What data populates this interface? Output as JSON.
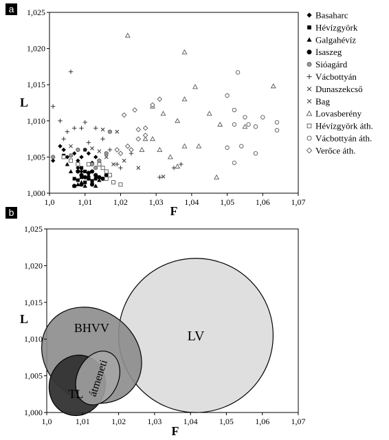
{
  "chart_data": [
    {
      "type": "scatter",
      "panel_label": "a",
      "xlabel": "F",
      "ylabel": "L",
      "xlim": [
        1.0,
        1.07
      ],
      "ylim": [
        1.0,
        1.025
      ],
      "x_ticks": [
        "1,0",
        "1,01",
        "1,02",
        "1,03",
        "1,04",
        "1,05",
        "1,06",
        "1,07"
      ],
      "y_ticks": [
        "1,000",
        "1,005",
        "1,010",
        "1,015",
        "1,020",
        "1,025"
      ],
      "legend_position": "right",
      "series": [
        {
          "name": "Basaharc",
          "marker": "diamond",
          "fill": "#000000",
          "points": [
            [
              1.001,
              1.0045
            ],
            [
              1.003,
              1.0065
            ],
            [
              1.004,
              1.006
            ],
            [
              1.005,
              1.005
            ],
            [
              1.007,
              1.0055
            ],
            [
              1.008,
              1.0045
            ],
            [
              1.009,
              1.005
            ],
            [
              1.01,
              1.006
            ],
            [
              1.011,
              1.0055
            ],
            [
              1.013,
              1.005
            ],
            [
              1.008,
              1.0035
            ],
            [
              1.012,
              1.0042
            ],
            [
              1.014,
              1.004
            ],
            [
              1.009,
              1.003
            ],
            [
              1.011,
              1.002
            ]
          ]
        },
        {
          "name": "Hévízgyörk",
          "marker": "square",
          "fill": "#000000",
          "points": [
            [
              1.007,
              1.002
            ],
            [
              1.008,
              1.0018
            ],
            [
              1.009,
              1.0022
            ],
            [
              1.01,
              1.0015
            ],
            [
              1.011,
              1.002
            ],
            [
              1.012,
              1.0017
            ],
            [
              1.009,
              1.0035
            ],
            [
              1.006,
              1.0045
            ],
            [
              1.004,
              1.0052
            ],
            [
              1.013,
              1.002
            ],
            [
              1.01,
              1.003
            ]
          ]
        },
        {
          "name": "Galgahévíz",
          "marker": "triangle",
          "fill": "#000000",
          "points": [
            [
              1.005,
              1.004
            ],
            [
              1.007,
              1.001
            ],
            [
              1.008,
              1.0012
            ],
            [
              1.01,
              1.001
            ],
            [
              1.012,
              1.0015
            ],
            [
              1.013,
              1.001
            ],
            [
              1.011,
              1.0025
            ],
            [
              1.009,
              1.0015
            ],
            [
              1.014,
              1.0018
            ],
            [
              1.006,
              1.003
            ]
          ]
        },
        {
          "name": "Isaszeg",
          "marker": "circle",
          "fill": "#000000",
          "points": [
            [
              1.007,
              1.001
            ],
            [
              1.008,
              1.003
            ],
            [
              1.009,
              1.0025
            ],
            [
              1.01,
              1.0022
            ],
            [
              1.011,
              1.0028
            ],
            [
              1.012,
              1.003
            ],
            [
              1.013,
              1.0025
            ],
            [
              1.014,
              1.0022
            ],
            [
              1.015,
              1.002
            ],
            [
              1.009,
              1.0012
            ],
            [
              1.012,
              1.0012
            ],
            [
              1.016,
              1.0025
            ]
          ]
        },
        {
          "name": "Sióagárd",
          "marker": "circle",
          "fill": "#999999",
          "points": [
            [
              1.001,
              1.005
            ],
            [
              1.006,
              1.0052
            ],
            [
              1.008,
              1.006
            ],
            [
              1.012,
              1.004
            ],
            [
              1.014,
              1.0045
            ],
            [
              1.017,
              1.0085
            ],
            [
              1.016,
              1.0055
            ],
            [
              1.013,
              1.0035
            ]
          ]
        },
        {
          "name": "Vácbottyán",
          "marker": "plus",
          "fill": "none",
          "points": [
            [
              1.001,
              1.012
            ],
            [
              1.003,
              1.01
            ],
            [
              1.004,
              1.0075
            ],
            [
              1.005,
              1.0085
            ],
            [
              1.006,
              1.0168
            ],
            [
              1.007,
              1.009
            ],
            [
              1.009,
              1.009
            ],
            [
              1.01,
              1.0098
            ],
            [
              1.011,
              1.007
            ],
            [
              1.013,
              1.009
            ],
            [
              1.015,
              1.0075
            ],
            [
              1.017,
              1.006
            ],
            [
              1.019,
              1.004
            ],
            [
              1.023,
              1.0055
            ],
            [
              1.031,
              1.0022
            ],
            [
              1.035,
              1.0035
            ],
            [
              1.037,
              1.004
            ],
            [
              1.02,
              1.0035
            ]
          ]
        },
        {
          "name": "Dunaszekcső",
          "marker": "x",
          "fill": "none",
          "points": [
            [
              1.015,
              1.0088
            ],
            [
              1.019,
              1.0085
            ],
            [
              1.016,
              1.005
            ],
            [
              1.021,
              1.0045
            ],
            [
              1.025,
              1.0035
            ],
            [
              1.032,
              1.0023
            ],
            [
              1.018,
              1.004
            ]
          ]
        },
        {
          "name": "Bag",
          "marker": "x",
          "fill": "none",
          "points": [
            [
              1.006,
              1.0065
            ],
            [
              1.01,
              1.006
            ],
            [
              1.012,
              1.0062
            ],
            [
              1.014,
              1.0058
            ]
          ]
        },
        {
          "name": "Lovasberény",
          "marker": "triangle-open",
          "fill": "none",
          "points": [
            [
              1.022,
              1.0218
            ],
            [
              1.038,
              1.0195
            ],
            [
              1.063,
              1.0148
            ],
            [
              1.041,
              1.0147
            ],
            [
              1.038,
              1.013
            ],
            [
              1.029,
              1.012
            ],
            [
              1.036,
              1.01
            ],
            [
              1.045,
              1.011
            ],
            [
              1.032,
              1.011
            ],
            [
              1.048,
              1.0095
            ],
            [
              1.055,
              1.0092
            ],
            [
              1.038,
              1.0065
            ],
            [
              1.031,
              1.006
            ],
            [
              1.029,
              1.0075
            ],
            [
              1.026,
              1.006
            ],
            [
              1.034,
              1.005
            ],
            [
              1.042,
              1.0065
            ],
            [
              1.036,
              1.0037
            ],
            [
              1.047,
              1.0022
            ],
            [
              1.027,
              1.0075
            ]
          ]
        },
        {
          "name": "Hévízgyörk áth.",
          "marker": "square-open",
          "fill": "none",
          "points": [
            [
              1.004,
              1.005
            ],
            [
              1.006,
              1.0045
            ],
            [
              1.008,
              1.004
            ],
            [
              1.011,
              1.004
            ],
            [
              1.014,
              1.004
            ],
            [
              1.016,
              1.003
            ],
            [
              1.017,
              1.0025
            ],
            [
              1.018,
              1.0015
            ],
            [
              1.02,
              1.0012
            ],
            [
              1.015,
              1.0035
            ],
            [
              1.016,
              1.002
            ]
          ]
        },
        {
          "name": "Vácbottyán áth.",
          "marker": "circle-open",
          "fill": "none",
          "points": [
            [
              1.053,
              1.0167
            ],
            [
              1.05,
              1.0135
            ],
            [
              1.052,
              1.0115
            ],
            [
              1.055,
              1.0105
            ],
            [
              1.06,
              1.0105
            ],
            [
              1.064,
              1.0098
            ],
            [
              1.056,
              1.0095
            ],
            [
              1.052,
              1.0095
            ],
            [
              1.058,
              1.0092
            ],
            [
              1.064,
              1.0087
            ],
            [
              1.05,
              1.0063
            ],
            [
              1.054,
              1.0065
            ],
            [
              1.058,
              1.0055
            ],
            [
              1.052,
              1.0042
            ]
          ]
        },
        {
          "name": "Verőce áth.",
          "marker": "diamond-open",
          "fill": "none",
          "points": [
            [
              1.021,
              1.0108
            ],
            [
              1.024,
              1.0115
            ],
            [
              1.029,
              1.0122
            ],
            [
              1.031,
              1.013
            ],
            [
              1.025,
              1.0088
            ],
            [
              1.027,
              1.009
            ],
            [
              1.022,
              1.0065
            ],
            [
              1.02,
              1.0055
            ],
            [
              1.025,
              1.0075
            ],
            [
              1.023,
              1.006
            ],
            [
              1.019,
              1.006
            ],
            [
              1.027,
              1.008
            ]
          ]
        }
      ]
    },
    {
      "type": "area",
      "panel_label": "b",
      "xlabel": "F",
      "ylabel": "L",
      "xlim": [
        1.0,
        1.07
      ],
      "ylim": [
        1.0,
        1.025
      ],
      "x_ticks": [
        "1,0",
        "1,01",
        "1,02",
        "1,03",
        "1,04",
        "1,05",
        "1,06",
        "1,07"
      ],
      "y_ticks": [
        "1,000",
        "1,005",
        "1,010",
        "1,015",
        "1,020",
        "1,025"
      ],
      "regions": [
        {
          "name": "LV",
          "cx": 1.0415,
          "cy": 1.0105,
          "rx": 0.0215,
          "ry": 0.0105,
          "rotate": 0,
          "fill": "#d9d9d9",
          "opacity": 0.85
        },
        {
          "name": "BHVV",
          "cx": 1.0125,
          "cy": 1.0078,
          "rx": 0.0125,
          "ry": 0.0072,
          "rotate": -52,
          "fill": "#8c8c8c",
          "opacity": 0.9
        },
        {
          "name": "TL",
          "cx": 1.0085,
          "cy": 1.0037,
          "rx": 0.0085,
          "ry": 0.0038,
          "rotate": -70,
          "fill": "#333333",
          "opacity": 0.95
        },
        {
          "name": "átmeneti",
          "cx": 1.0142,
          "cy": 1.0047,
          "rx": 0.0078,
          "ry": 0.0028,
          "rotate": -65,
          "fill": "#a6a6a6",
          "opacity": 0.85
        }
      ]
    }
  ]
}
